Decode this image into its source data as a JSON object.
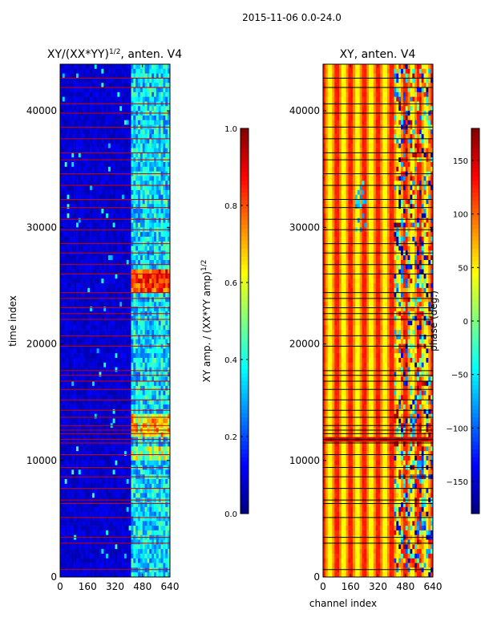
{
  "figure_title": "2015-11-06 0.0-24.0",
  "chart_data": [
    {
      "type": "heatmap",
      "title": "XY/(XX*YY)1/2, anten. V4",
      "title_main": "XY/(XX*YY)",
      "title_sup": "1/2",
      "title_tail": ", anten. V4",
      "xlabel": "",
      "ylabel": "time index",
      "xlim": [
        0,
        640
      ],
      "ylim": [
        0,
        44000
      ],
      "xticks": [
        0,
        160,
        320,
        480,
        640
      ],
      "yticks": [
        0,
        10000,
        20000,
        30000,
        40000
      ],
      "colormap": "jet",
      "colorbar": {
        "range": [
          0.0,
          1.0
        ],
        "ticks": [
          "0.0",
          "0.2",
          "0.4",
          "0.6",
          "0.8",
          "1.0"
        ],
        "tick_values": [
          0.0,
          0.2,
          0.4,
          0.6,
          0.8,
          1.0
        ],
        "label_main": "XY amp. / (XX*YY amp)",
        "label_sup": "1/2"
      },
      "flag_line_color": "#cc0000",
      "flag_line_times": [
        640,
        2900,
        3400,
        5100,
        6300,
        6600,
        7600,
        8600,
        9400,
        10500,
        11500,
        11800,
        12300,
        12600,
        13000,
        13700,
        14300,
        15200,
        16100,
        16800,
        17300,
        17700,
        19800,
        20700,
        22100,
        22600,
        23100,
        23900,
        24400,
        26000,
        26800,
        27800,
        28600,
        29800,
        30700,
        31700,
        32400,
        33600,
        34600,
        35800,
        36400,
        37600,
        38600,
        39800,
        40600,
        42000,
        42800
      ],
      "features": {
        "high_band_channels": [
          410,
          640
        ],
        "low_band_value": 0.08,
        "high_band_value": 0.35,
        "bright_row_times": [
          11550,
          11750
        ],
        "bright_row_value": 0.45,
        "hot_spot_times": [
          24600,
          26400
        ],
        "hot_spot_value": 0.82
      }
    },
    {
      "type": "heatmap",
      "title": "XY, anten. V4",
      "xlabel": "channel index",
      "ylabel": "",
      "xlim": [
        0,
        640
      ],
      "ylim": [
        0,
        44000
      ],
      "xticks": [
        0,
        160,
        320,
        480,
        640
      ],
      "yticks": [
        0,
        10000,
        20000,
        30000,
        40000
      ],
      "colormap": "jet",
      "colorbar": {
        "range": [
          -180,
          180
        ],
        "ticks": [
          "−150",
          "−100",
          "−50",
          "0",
          "50",
          "100",
          "150"
        ],
        "tick_values": [
          -150,
          -100,
          -50,
          0,
          50,
          100,
          150
        ],
        "label": "phase (deg.)"
      },
      "flag_line_color": "#000000",
      "flag_line_times": [
        640,
        2900,
        3400,
        5100,
        6300,
        6600,
        7600,
        8600,
        9400,
        10500,
        11500,
        11800,
        12300,
        12600,
        13000,
        13700,
        14300,
        15200,
        16100,
        16800,
        17300,
        17700,
        19800,
        20700,
        22100,
        22600,
        23100,
        23900,
        24400,
        26000,
        26800,
        27800,
        28600,
        29800,
        30700,
        31700,
        32400,
        33600,
        34600,
        35800,
        36400,
        37600,
        38600,
        39800,
        40600,
        42000,
        42800
      ],
      "features": {
        "phase_stripe_period_channels": 80,
        "phase_range_low_deg": 40,
        "phase_range_high_deg": 130,
        "noisy_band_channels": [
          420,
          640
        ],
        "bright_row_times": [
          11400,
          11900
        ],
        "bright_row_value_deg": 150
      }
    }
  ]
}
